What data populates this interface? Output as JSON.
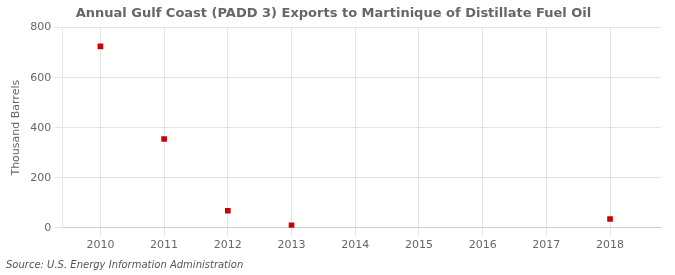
{
  "chart_data": {
    "type": "scatter",
    "title": "Annual Gulf Coast (PADD 3) Exports to Martinique of Distillate Fuel Oil",
    "ylabel": "Thousand Barrels",
    "annotation": "Source: U.S. Energy Information Administration",
    "x": [
      2010,
      2011,
      2012,
      2013,
      2018
    ],
    "values": [
      725,
      355,
      68,
      10,
      35
    ],
    "color": "#cc0000",
    "marker": "square",
    "xlim": [
      2009.4,
      2018.8
    ],
    "ylim": [
      0,
      800
    ],
    "xticks": [
      2010,
      2011,
      2012,
      2013,
      2014,
      2015,
      2016,
      2017,
      2018
    ],
    "yticks": [
      0,
      200,
      400,
      600,
      800
    ],
    "grid": true
  }
}
